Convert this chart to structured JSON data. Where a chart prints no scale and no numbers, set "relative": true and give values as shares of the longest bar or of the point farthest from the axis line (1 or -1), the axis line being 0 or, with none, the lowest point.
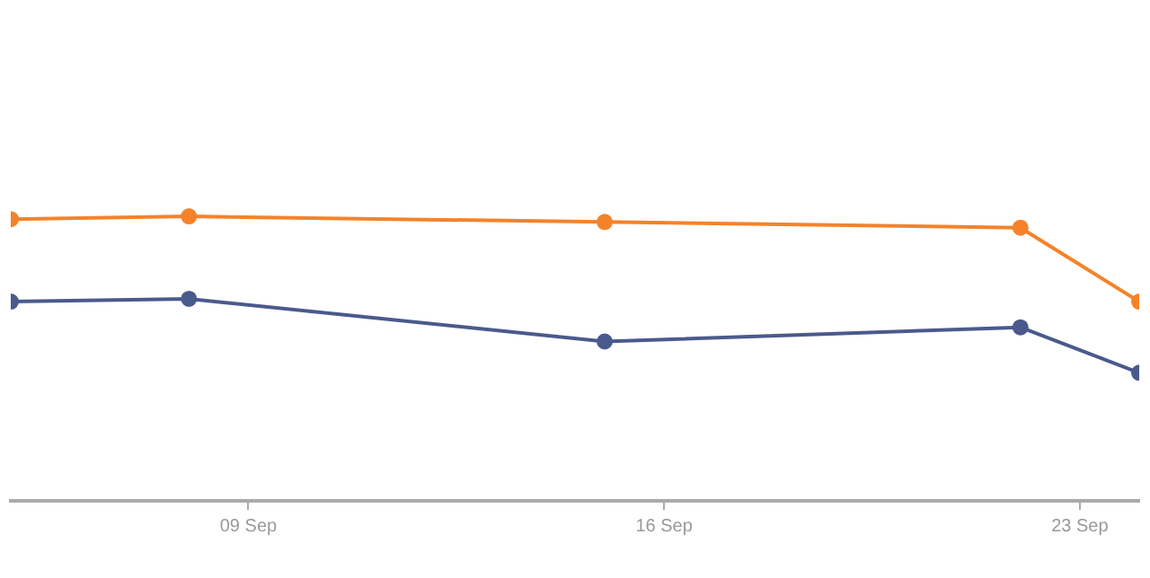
{
  "chart_data": {
    "type": "line",
    "relative": true,
    "x": [
      "--09-05",
      "--09-08",
      "--09-15",
      "--09-22",
      "--09-24"
    ],
    "series": [
      {
        "color": "#f5822a",
        "values": [
          0.99,
          1,
          0.98,
          0.96,
          0.7
        ]
      },
      {
        "color": "#4a5a8c",
        "values": [
          0.7,
          0.71,
          0.56,
          0.61,
          0.45
        ]
      }
    ],
    "xlim": [
      "--09-05",
      "--09-24"
    ],
    "xticks": [
      {
        "value": "--09-09",
        "label": "09 Sep"
      },
      {
        "value": "--09-16",
        "label": "16 Sep"
      },
      {
        "value": "--09-23",
        "label": "23 Sep"
      }
    ],
    "marker": "circle",
    "line_style": "solid",
    "grid": false,
    "legend": false
  }
}
